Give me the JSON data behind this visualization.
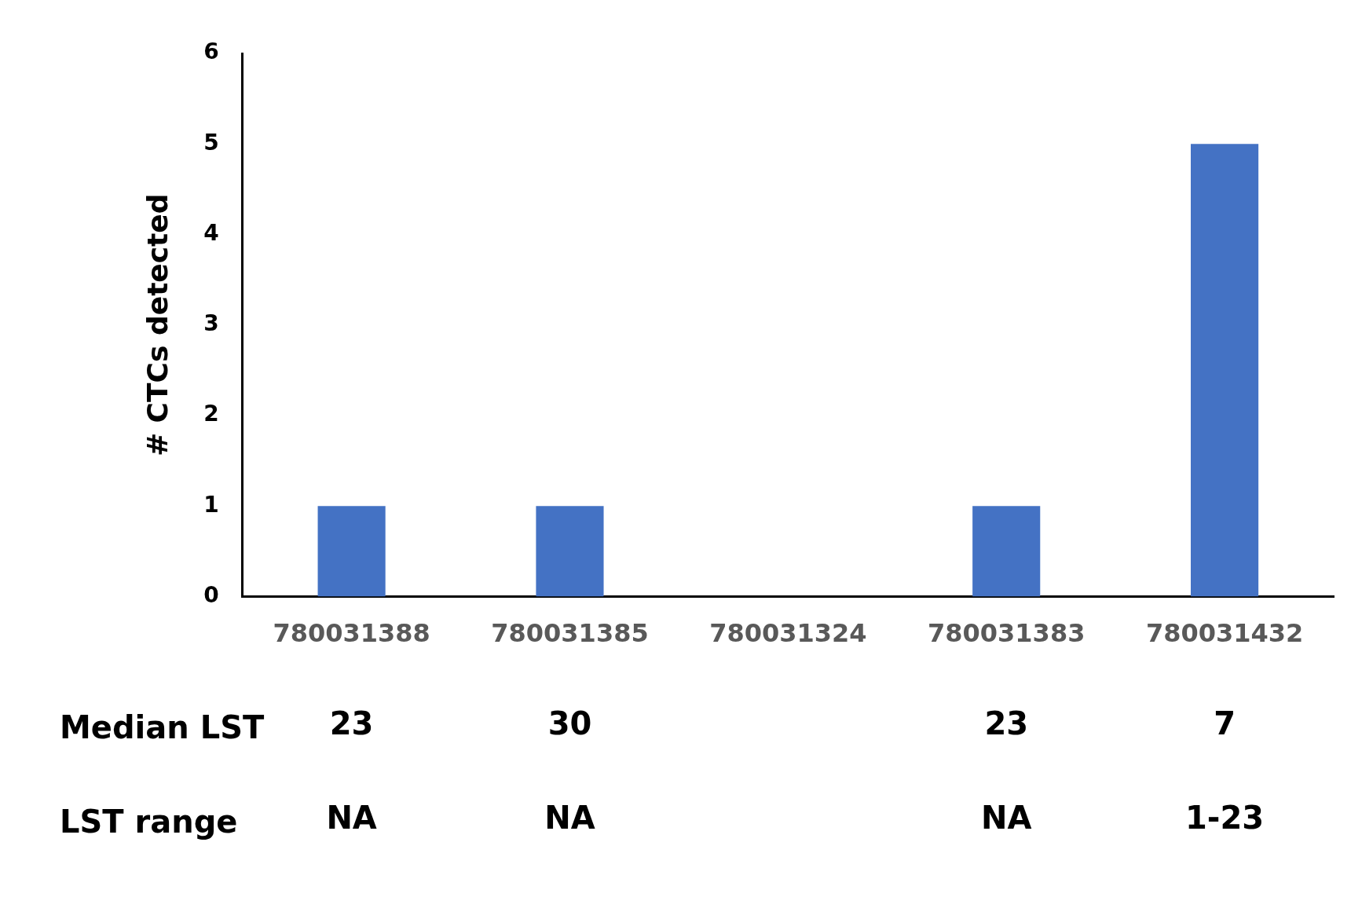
{
  "chart_data": {
    "type": "bar",
    "ylabel": "# CTCs detected",
    "categories": [
      "780031388",
      "780031385",
      "780031324",
      "780031383",
      "780031432"
    ],
    "values": [
      1,
      1,
      0,
      1,
      5
    ],
    "color": "#4472c4",
    "ylim": [
      0,
      6
    ],
    "yticks": [
      0,
      1,
      2,
      3,
      4,
      5,
      6
    ],
    "grid": false,
    "legend": false,
    "annotations": [
      "Median LST",
      "23",
      "30",
      "23",
      "7",
      "LST range",
      "NA",
      "NA",
      "NA",
      "1-23"
    ]
  }
}
